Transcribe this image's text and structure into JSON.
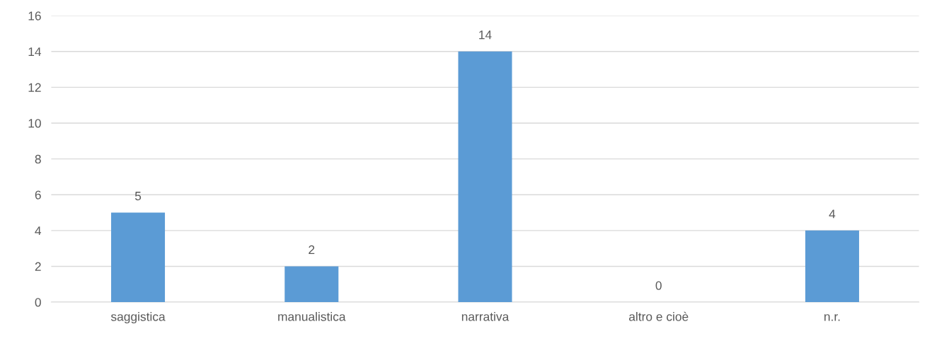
{
  "chart_data": {
    "type": "bar",
    "categories": [
      "saggistica",
      "manualistica",
      "narrativa",
      "altro e cioè",
      "n.r."
    ],
    "values": [
      5,
      2,
      14,
      0,
      4
    ],
    "color": "#5b9bd5",
    "ylim": [
      0,
      16
    ],
    "yticks": [
      0,
      2,
      4,
      6,
      8,
      10,
      12,
      14,
      16
    ],
    "grid": "y",
    "data_labels": true
  }
}
